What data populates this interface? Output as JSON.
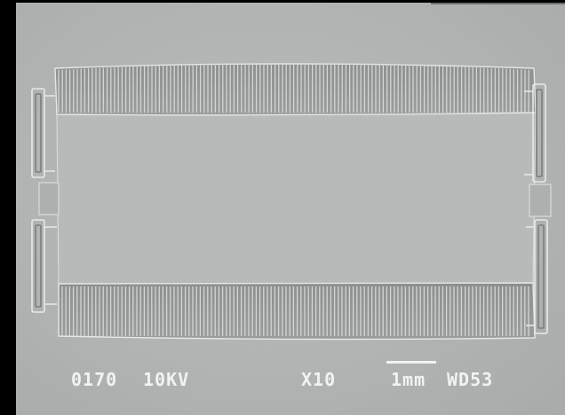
{
  "micrograph": {
    "subject": "sem-micrograph-comb-drive-frame",
    "background_color": "#b5b7b7",
    "outer_border_color": "#000000"
  },
  "databar": {
    "image_number": "0170",
    "accelerating_voltage": "10KV",
    "magnification": "X10",
    "scale_bar_label": "1mm",
    "working_distance": "WD53"
  }
}
